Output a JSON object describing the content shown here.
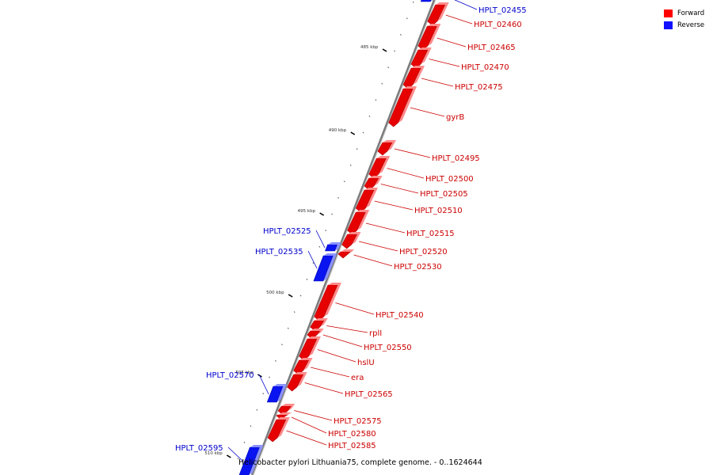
{
  "viewer": {
    "caption": "Helicobacter pylori Lithuania75, complete genome. - 0..1624644"
  },
  "colors": {
    "forward": "#e60000",
    "reverse": "#0a14f0",
    "axis": "#7a7a7a"
  },
  "legend": [
    {
      "label": "Forward",
      "color": "#ff0000"
    },
    {
      "label": "Reverse",
      "color": "#1010ff"
    }
  ],
  "ticks": [
    {
      "label": "485 kbp"
    },
    {
      "label": "490 kbp"
    },
    {
      "label": "495 kbp"
    },
    {
      "label": "500 kbp"
    },
    {
      "label": "505 kbp"
    },
    {
      "label": "510 kbp"
    }
  ],
  "genes": [
    {
      "name": "HPLT_02455",
      "strand": "reverse"
    },
    {
      "name": "HPLT_02460",
      "strand": "forward"
    },
    {
      "name": "HPLT_02465",
      "strand": "forward"
    },
    {
      "name": "HPLT_02470",
      "strand": "forward"
    },
    {
      "name": "HPLT_02475",
      "strand": "forward"
    },
    {
      "name": "gyrB",
      "strand": "forward"
    },
    {
      "name": "HPLT_02495",
      "strand": "forward"
    },
    {
      "name": "HPLT_02500",
      "strand": "forward"
    },
    {
      "name": "HPLT_02505",
      "strand": "forward"
    },
    {
      "name": "HPLT_02510",
      "strand": "forward"
    },
    {
      "name": "HPLT_02515",
      "strand": "forward"
    },
    {
      "name": "HPLT_02520",
      "strand": "forward"
    },
    {
      "name": "HPLT_02525",
      "strand": "reverse"
    },
    {
      "name": "HPLT_02530",
      "strand": "forward"
    },
    {
      "name": "HPLT_02535",
      "strand": "reverse"
    },
    {
      "name": "HPLT_02540",
      "strand": "forward"
    },
    {
      "name": "rplI",
      "strand": "forward"
    },
    {
      "name": "HPLT_02550",
      "strand": "forward"
    },
    {
      "name": "hslU",
      "strand": "forward"
    },
    {
      "name": "era",
      "strand": "forward"
    },
    {
      "name": "HPLT_02565",
      "strand": "forward"
    },
    {
      "name": "HPLT_02570",
      "strand": "reverse"
    },
    {
      "name": "HPLT_02575",
      "strand": "forward"
    },
    {
      "name": "HPLT_02580",
      "strand": "forward"
    },
    {
      "name": "HPLT_02585",
      "strand": "forward"
    },
    {
      "name": "HPLT_02595",
      "strand": "reverse"
    }
  ]
}
